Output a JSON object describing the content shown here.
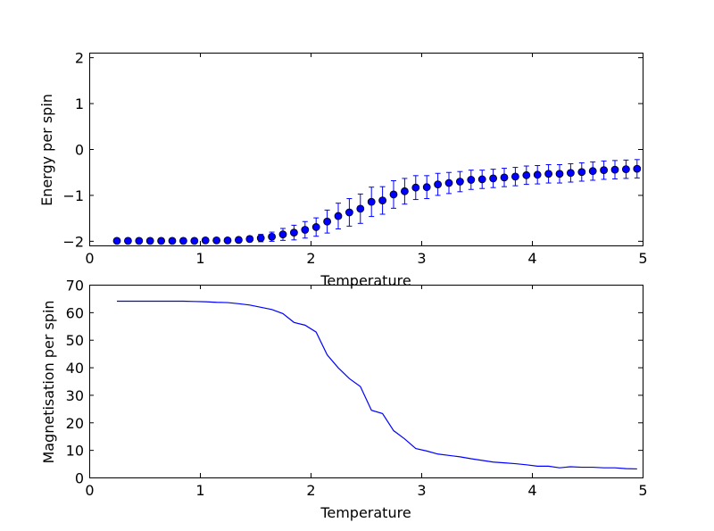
{
  "chart_data": [
    {
      "type": "scatter",
      "title": "",
      "xlabel": "Temperature",
      "ylabel": "Energy per spin",
      "xlim": [
        0,
        5
      ],
      "ylim": [
        -2.1,
        2.1
      ],
      "xticks": [
        "0",
        "1",
        "2",
        "3",
        "4",
        "5"
      ],
      "yticks": [
        "−2",
        "−1",
        "0",
        "1",
        "2"
      ],
      "marker_color": "#0000ff",
      "series": [
        {
          "name": "energy",
          "x": [
            0.25,
            0.35,
            0.45,
            0.55,
            0.65,
            0.75,
            0.85,
            0.95,
            1.05,
            1.15,
            1.25,
            1.35,
            1.45,
            1.55,
            1.65,
            1.75,
            1.85,
            1.95,
            2.05,
            2.15,
            2.25,
            2.35,
            2.45,
            2.55,
            2.65,
            2.75,
            2.85,
            2.95,
            3.05,
            3.15,
            3.25,
            3.35,
            3.45,
            3.55,
            3.65,
            3.75,
            3.85,
            3.95,
            4.05,
            4.15,
            4.25,
            4.35,
            4.45,
            4.55,
            4.65,
            4.75,
            4.85,
            4.95
          ],
          "y": [
            -2.0,
            -2.0,
            -2.0,
            -2.0,
            -2.0,
            -2.0,
            -2.0,
            -2.0,
            -1.99,
            -1.99,
            -1.99,
            -1.98,
            -1.96,
            -1.94,
            -1.91,
            -1.86,
            -1.82,
            -1.76,
            -1.7,
            -1.58,
            -1.46,
            -1.38,
            -1.3,
            -1.15,
            -1.12,
            -0.99,
            -0.92,
            -0.84,
            -0.83,
            -0.77,
            -0.74,
            -0.71,
            -0.67,
            -0.66,
            -0.64,
            -0.62,
            -0.6,
            -0.57,
            -0.56,
            -0.54,
            -0.54,
            -0.52,
            -0.5,
            -0.48,
            -0.46,
            -0.45,
            -0.44,
            -0.43
          ],
          "yerr": [
            0.02,
            0.02,
            0.02,
            0.02,
            0.02,
            0.02,
            0.02,
            0.02,
            0.03,
            0.03,
            0.04,
            0.05,
            0.06,
            0.08,
            0.1,
            0.13,
            0.16,
            0.18,
            0.2,
            0.25,
            0.28,
            0.3,
            0.32,
            0.32,
            0.3,
            0.3,
            0.28,
            0.26,
            0.25,
            0.24,
            0.23,
            0.22,
            0.21,
            0.2,
            0.2,
            0.2,
            0.2,
            0.2,
            0.2,
            0.2,
            0.2,
            0.2,
            0.2,
            0.2,
            0.2,
            0.2,
            0.2,
            0.2
          ]
        }
      ]
    },
    {
      "type": "line",
      "title": "",
      "xlabel": "Temperature",
      "ylabel": "Magnetisation per spin",
      "xlim": [
        0,
        5
      ],
      "ylim": [
        0,
        70
      ],
      "xticks": [
        "0",
        "1",
        "2",
        "3",
        "4",
        "5"
      ],
      "yticks": [
        "0",
        "10",
        "20",
        "30",
        "40",
        "50",
        "60",
        "70"
      ],
      "line_color": "#0000ff",
      "series": [
        {
          "name": "magnetisation",
          "x": [
            0.25,
            0.35,
            0.45,
            0.55,
            0.65,
            0.75,
            0.85,
            0.95,
            1.05,
            1.15,
            1.25,
            1.35,
            1.45,
            1.55,
            1.65,
            1.75,
            1.85,
            1.95,
            2.05,
            2.15,
            2.25,
            2.35,
            2.45,
            2.55,
            2.65,
            2.75,
            2.85,
            2.95,
            3.05,
            3.15,
            3.25,
            3.35,
            3.45,
            3.55,
            3.65,
            3.75,
            3.85,
            3.95,
            4.05,
            4.15,
            4.25,
            4.35,
            4.45,
            4.55,
            4.65,
            4.75,
            4.85,
            4.95
          ],
          "y": [
            64,
            64,
            64,
            64,
            64,
            64,
            64,
            63.9,
            63.8,
            63.6,
            63.5,
            63.1,
            62.6,
            61.8,
            61,
            59.5,
            56.3,
            55.3,
            52.8,
            44.5,
            39.8,
            35.9,
            33,
            24.4,
            23.2,
            17,
            14,
            10.5,
            9.6,
            8.5,
            8,
            7.5,
            6.8,
            6.2,
            5.6,
            5.3,
            5,
            4.6,
            4.1,
            4.1,
            3.5,
            3.9,
            3.7,
            3.7,
            3.5,
            3.5,
            3.2,
            3.1
          ]
        }
      ]
    }
  ]
}
